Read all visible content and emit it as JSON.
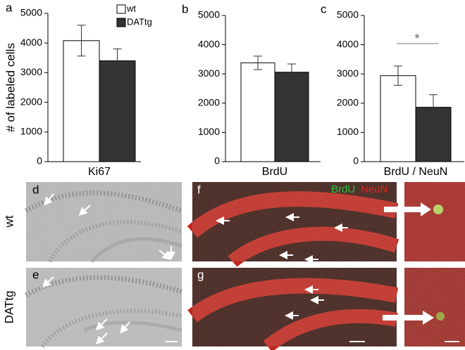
{
  "chart_data": [
    {
      "type": "bar",
      "panel": "a",
      "ylabel": "# of labeled cells",
      "categories": [
        "Ki67"
      ],
      "series": [
        {
          "name": "wt",
          "color": "#ffffff",
          "values": [
            4080
          ],
          "errors": [
            520
          ]
        },
        {
          "name": "DATtg",
          "color": "#333333",
          "values": [
            3400
          ],
          "errors": [
            400
          ]
        }
      ],
      "ylim": [
        0,
        5000
      ],
      "yticks": [
        0,
        1000,
        2000,
        3000,
        4000,
        5000
      ]
    },
    {
      "type": "bar",
      "panel": "b",
      "categories": [
        "BrdU"
      ],
      "series": [
        {
          "color": "#ffffff",
          "values": [
            3380
          ],
          "errors": [
            230
          ]
        },
        {
          "color": "#333333",
          "values": [
            3060
          ],
          "errors": [
            280
          ]
        }
      ],
      "ylim": [
        0,
        5000
      ],
      "yticks": [
        0,
        1000,
        2000,
        3000,
        4000,
        5000
      ]
    },
    {
      "type": "bar",
      "panel": "c",
      "categories": [
        "BrdU / NeuN"
      ],
      "series": [
        {
          "color": "#ffffff",
          "values": [
            2940
          ],
          "errors": [
            330
          ]
        },
        {
          "color": "#333333",
          "values": [
            1860
          ],
          "errors": [
            430
          ]
        }
      ],
      "ylim": [
        0,
        5000
      ],
      "yticks": [
        0,
        1000,
        2000,
        3000,
        4000,
        5000
      ],
      "annotations": [
        "*"
      ]
    }
  ],
  "panels": {
    "row_labels": [
      "wt",
      "DATtg"
    ],
    "letters": [
      "d",
      "e",
      "f",
      "g"
    ],
    "stain_labels": [
      "BrdU",
      "NeuN"
    ]
  }
}
